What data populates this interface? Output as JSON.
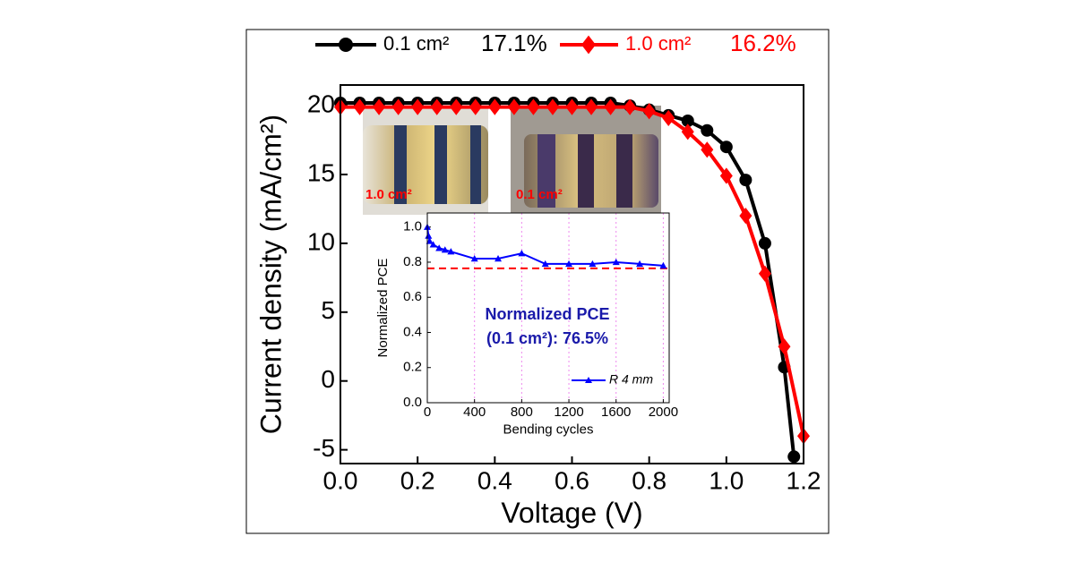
{
  "chart_data": [
    {
      "type": "line",
      "xlabel": "Voltage (V)",
      "ylabel": "Current density (mA/cm²)",
      "xlim": [
        0,
        1.2
      ],
      "ylim": [
        -6,
        21.5
      ],
      "xticks": [
        {
          "value": 0,
          "label": "0.0"
        },
        {
          "value": 0.2,
          "label": "0.2"
        },
        {
          "value": 0.4,
          "label": "0.4"
        },
        {
          "value": 0.6,
          "label": "0.6"
        },
        {
          "value": 0.8,
          "label": "0.8"
        },
        {
          "value": 1,
          "label": "1.0"
        },
        {
          "value": 1.2,
          "label": "1.2"
        }
      ],
      "yticks": [
        -5,
        0,
        5,
        10,
        15,
        20
      ],
      "series": [
        {
          "name": "0.1 cm²",
          "efficiency": "17.1%",
          "color": "#000000",
          "marker": "circle",
          "x": [
            0,
            0.05,
            0.1,
            0.15,
            0.2,
            0.25,
            0.3,
            0.35,
            0.4,
            0.45,
            0.5,
            0.55,
            0.6,
            0.65,
            0.7,
            0.75,
            0.8,
            0.85,
            0.9,
            0.95,
            1.0,
            1.05,
            1.1,
            1.15,
            1.175
          ],
          "values": [
            20.2,
            20.2,
            20.2,
            20.2,
            20.2,
            20.2,
            20.2,
            20.2,
            20.2,
            20.2,
            20.2,
            20.2,
            20.2,
            20.2,
            20.2,
            20.0,
            19.7,
            19.3,
            18.9,
            18.2,
            17.0,
            14.6,
            10.0,
            1.0,
            -5.5
          ]
        },
        {
          "name": "1.0 cm²",
          "efficiency": "16.2%",
          "color": "#ff0000",
          "marker": "diamond",
          "x": [
            0,
            0.05,
            0.1,
            0.15,
            0.2,
            0.25,
            0.3,
            0.35,
            0.4,
            0.45,
            0.5,
            0.55,
            0.6,
            0.65,
            0.7,
            0.75,
            0.8,
            0.85,
            0.9,
            0.95,
            1.0,
            1.05,
            1.1,
            1.15,
            1.2
          ],
          "values": [
            19.9,
            19.9,
            19.9,
            19.9,
            19.9,
            19.9,
            19.9,
            19.9,
            19.9,
            19.9,
            19.9,
            19.9,
            19.9,
            19.9,
            19.9,
            19.9,
            19.6,
            19.1,
            18.1,
            16.8,
            14.9,
            12.0,
            7.8,
            2.5,
            -4.0
          ]
        }
      ],
      "annotations": [
        "1.0 cm²",
        "0.1 cm²"
      ]
    },
    {
      "type": "line",
      "xlabel": "Bending cycles",
      "ylabel": "Normalized PCE",
      "xlim": [
        0,
        2050
      ],
      "ylim": [
        0,
        1.08
      ],
      "xticks": [
        0,
        400,
        800,
        1200,
        1600,
        2000
      ],
      "yticks": [
        {
          "value": 0,
          "label": "0.0"
        },
        {
          "value": 0.2,
          "label": "0.2"
        },
        {
          "value": 0.4,
          "label": "0.4"
        },
        {
          "value": 0.6,
          "label": "0.6"
        },
        {
          "value": 0.8,
          "label": "0.8"
        },
        {
          "value": 1,
          "label": "1.0"
        }
      ],
      "xgrid": true,
      "series": [
        {
          "name": "R 4 mm",
          "color": "#0000ff",
          "marker": "triangle",
          "x": [
            0,
            10,
            20,
            50,
            100,
            150,
            200,
            400,
            600,
            800,
            1000,
            1200,
            1400,
            1600,
            1800,
            2000
          ],
          "values": [
            1.0,
            0.95,
            0.92,
            0.9,
            0.88,
            0.87,
            0.86,
            0.82,
            0.82,
            0.85,
            0.79,
            0.79,
            0.79,
            0.8,
            0.79,
            0.78
          ]
        }
      ],
      "reference_line": 0.765,
      "annotation": [
        "Normalized PCE",
        "(0.1 cm²): 76.5%"
      ]
    }
  ]
}
